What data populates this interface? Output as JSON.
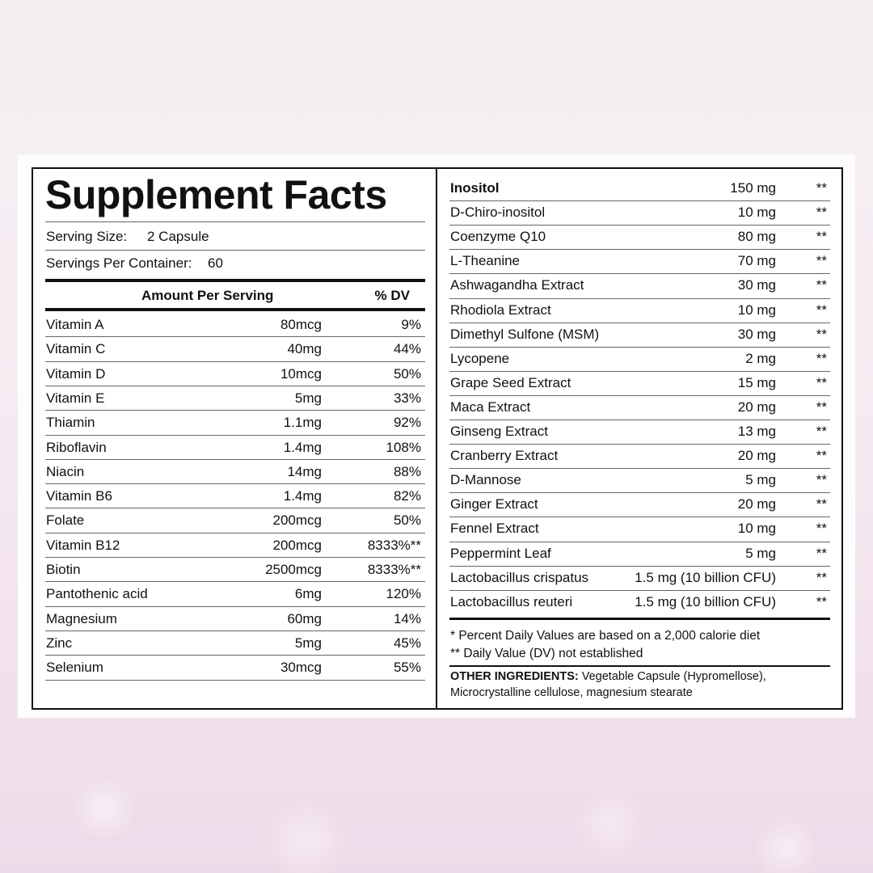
{
  "title": "Supplement Facts",
  "serving_size": {
    "label": "Serving Size:",
    "value": "2 Capsule"
  },
  "servings_per_container": {
    "label": "Servings Per Container:",
    "value": "60"
  },
  "table_header": {
    "amount": "Amount Per Serving",
    "dv": "% DV"
  },
  "left_rows": [
    {
      "name": "Vitamin A",
      "amount": "80mcg",
      "dv": "9%"
    },
    {
      "name": "Vitamin C",
      "amount": "40mg",
      "dv": "44%"
    },
    {
      "name": "Vitamin D",
      "amount": "10mcg",
      "dv": "50%"
    },
    {
      "name": "Vitamin E",
      "amount": "5mg",
      "dv": "33%"
    },
    {
      "name": "Thiamin",
      "amount": "1.1mg",
      "dv": "92%"
    },
    {
      "name": "Riboflavin",
      "amount": "1.4mg",
      "dv": "108%"
    },
    {
      "name": "Niacin",
      "amount": "14mg",
      "dv": "88%"
    },
    {
      "name": "Vitamin B6",
      "amount": "1.4mg",
      "dv": "82%"
    },
    {
      "name": "Folate",
      "amount": "200mcg",
      "dv": "50%"
    },
    {
      "name": "Vitamin B12",
      "amount": "200mcg",
      "dv": "8333%**"
    },
    {
      "name": "Biotin",
      "amount": "2500mcg",
      "dv": "8333%**"
    },
    {
      "name": "Pantothenic acid",
      "amount": "6mg",
      "dv": "120%"
    },
    {
      "name": "Magnesium",
      "amount": "60mg",
      "dv": "14%"
    },
    {
      "name": "Zinc",
      "amount": "5mg",
      "dv": "45%"
    },
    {
      "name": "Selenium",
      "amount": "30mcg",
      "dv": "55%"
    }
  ],
  "right_rows": [
    {
      "name": "Inositol",
      "amount": "150 mg",
      "dv": "**"
    },
    {
      "name": "D-Chiro-inositol",
      "amount": "10 mg",
      "dv": "**"
    },
    {
      "name": "Coenzyme Q10",
      "amount": "80 mg",
      "dv": "**"
    },
    {
      "name": "L-Theanine",
      "amount": "70 mg",
      "dv": "**"
    },
    {
      "name": "Ashwagandha Extract",
      "amount": "30 mg",
      "dv": "**"
    },
    {
      "name": "Rhodiola Extract",
      "amount": "10 mg",
      "dv": "**"
    },
    {
      "name": "Dimethyl Sulfone (MSM)",
      "amount": "30 mg",
      "dv": "**"
    },
    {
      "name": "Lycopene",
      "amount": "2 mg",
      "dv": "**"
    },
    {
      "name": "Grape Seed Extract",
      "amount": "15 mg",
      "dv": "**"
    },
    {
      "name": "Maca Extract",
      "amount": "20 mg",
      "dv": "**"
    },
    {
      "name": "Ginseng Extract",
      "amount": "13 mg",
      "dv": "**"
    },
    {
      "name": "Cranberry Extract",
      "amount": "20 mg",
      "dv": "**"
    },
    {
      "name": "D-Mannose",
      "amount": "5 mg",
      "dv": "**"
    },
    {
      "name": "Ginger Extract",
      "amount": "20 mg",
      "dv": "**"
    },
    {
      "name": "Fennel Extract",
      "amount": "10 mg",
      "dv": "**"
    },
    {
      "name": "Peppermint Leaf",
      "amount": "5 mg",
      "dv": "**"
    },
    {
      "name": "Lactobacillus crispatus",
      "amount": "1.5 mg (10 billion CFU)",
      "dv": "**"
    },
    {
      "name": "Lactobacillus reuteri",
      "amount": "1.5 mg (10 billion CFU)",
      "dv": "**"
    }
  ],
  "footnotes": {
    "percent_dv": "* Percent Daily Values are based on a 2,000 calorie diet",
    "not_established": "** Daily Value (DV) not established"
  },
  "other_ingredients": {
    "label": "OTHER INGREDIENTS:",
    "line1": "Vegetable Capsule (Hypromellose),",
    "line2": "Microcrystalline cellulose, magnesium stearate"
  }
}
